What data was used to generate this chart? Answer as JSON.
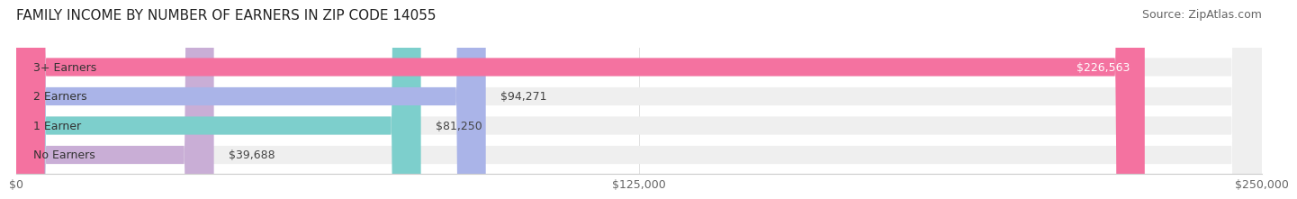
{
  "title": "FAMILY INCOME BY NUMBER OF EARNERS IN ZIP CODE 14055",
  "source": "Source: ZipAtlas.com",
  "categories": [
    "No Earners",
    "1 Earner",
    "2 Earners",
    "3+ Earners"
  ],
  "values": [
    39688,
    81250,
    94271,
    226563
  ],
  "bar_colors": [
    "#c9aed6",
    "#7dcfcc",
    "#aab4e8",
    "#f472a0"
  ],
  "bar_bg_color": "#efefef",
  "label_colors": [
    "#555555",
    "#555555",
    "#555555",
    "#ffffff"
  ],
  "xlim": [
    0,
    250000
  ],
  "xticks": [
    0,
    125000,
    250000
  ],
  "xtick_labels": [
    "$0",
    "$125,000",
    "$250,000"
  ],
  "title_fontsize": 11,
  "source_fontsize": 9,
  "bar_label_fontsize": 9,
  "category_fontsize": 9,
  "background_color": "#ffffff"
}
